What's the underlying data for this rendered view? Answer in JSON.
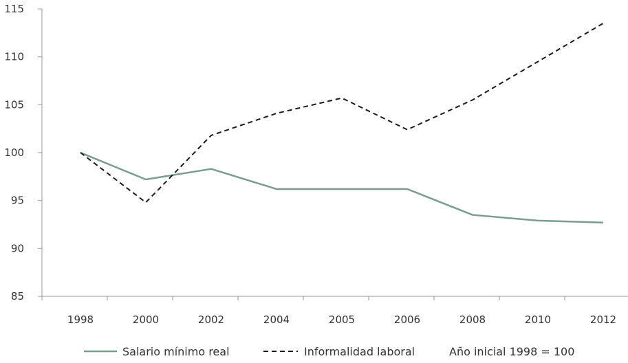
{
  "chart_data": {
    "type": "line",
    "categories": [
      "1998",
      "2000",
      "2002",
      "2004",
      "2005",
      "2006",
      "2008",
      "2010",
      "2012"
    ],
    "ylim": [
      85,
      115
    ],
    "yticks": [
      85,
      90,
      95,
      100,
      105,
      110,
      115
    ],
    "series": [
      {
        "name": "Salario mínimo real",
        "values": [
          100,
          97.2,
          98.3,
          96.2,
          96.2,
          96.2,
          93.5,
          92.9,
          92.7
        ],
        "color": "#7a9e8e",
        "style": "solid"
      },
      {
        "name": "Informalidad laboral",
        "values": [
          100,
          94.8,
          101.8,
          104.1,
          105.7,
          102.4,
          105.5,
          109.5,
          113.5
        ],
        "color": "#1a1a1a",
        "style": "dashed"
      }
    ],
    "note": "Año inicial 1998 = 100",
    "grid": false,
    "legend_position": "bottom"
  }
}
